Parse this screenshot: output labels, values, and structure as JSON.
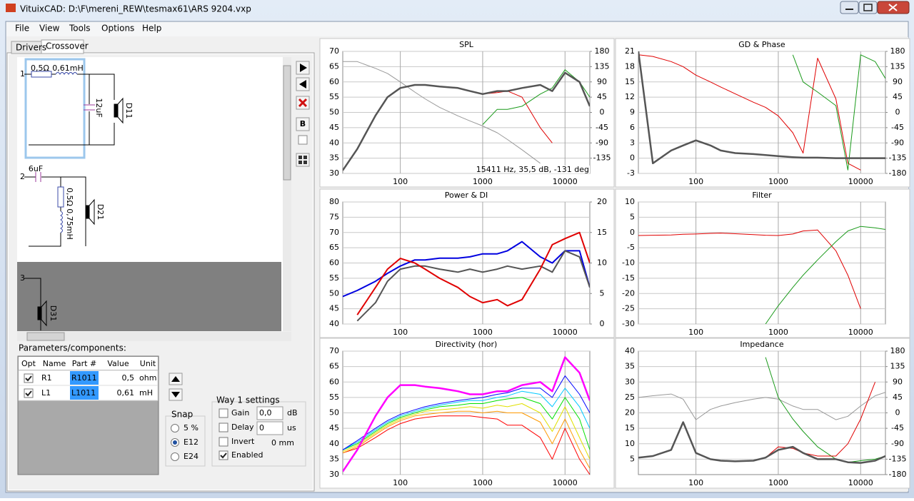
{
  "window": {
    "title": "VituixCAD: D:\\F\\mereni_REW\\tesmax61\\ARS 9204.vxp"
  },
  "menu": [
    "File",
    "View",
    "Tools",
    "Options",
    "Help"
  ],
  "tabs": [
    "Drivers",
    "Crossover"
  ],
  "schematic": {
    "way1": {
      "number": "1",
      "r": "0,5Ω",
      "l": "0,61mH",
      "c": "12uF",
      "driver": "D11"
    },
    "way2": {
      "number": "2",
      "c": "6uF",
      "r": "0,5Ω",
      "l": "0,75mH",
      "driver": "D21"
    },
    "way3": {
      "number": "3",
      "driver": "D31"
    }
  },
  "parameters": {
    "title": "Parameters/components:",
    "columns": [
      "Opt",
      "Name",
      "Part #",
      "Value",
      "Unit"
    ],
    "rows": [
      {
        "opt": true,
        "cells": [
          "R1",
          "R1011",
          "0,5",
          "ohm"
        ]
      },
      {
        "opt": true,
        "cells": [
          "L1",
          "L1011",
          "0,61",
          "mH"
        ]
      }
    ]
  },
  "snap": {
    "title": "Snap",
    "options": [
      "5 %",
      "E12",
      "E24"
    ],
    "selected_index": 1
  },
  "way_settings": {
    "title": "Way 1 settings",
    "gain": {
      "label": "Gain",
      "value": "0,0",
      "unit": "dB"
    },
    "delay": {
      "label": "Delay",
      "value": "0",
      "unit": "us"
    },
    "invert": {
      "label": "Invert",
      "checked": false,
      "distance": "0 mm"
    },
    "enabled": {
      "label": "Enabled",
      "checked": true
    }
  },
  "charts": [
    {
      "type": "line",
      "title": "SPL",
      "xscale": "log",
      "xlim": [
        20,
        20000
      ],
      "xticks": [
        100,
        1000,
        10000
      ],
      "ylim": [
        30,
        70
      ],
      "yticks": [
        70,
        65,
        60,
        55,
        50,
        45,
        40,
        35,
        30
      ],
      "y2lim": [
        -180,
        180
      ],
      "y2ticks": [
        180,
        135,
        90,
        45,
        0,
        -45,
        -90,
        -135
      ],
      "grid": true,
      "annotation": "15411 Hz, 35,5 dB, -131 deg",
      "x": [
        20,
        30,
        50,
        70,
        100,
        150,
        200,
        300,
        500,
        700,
        1000,
        1500,
        2000,
        3000,
        5000,
        7000,
        10000,
        15000,
        20000
      ],
      "series": [
        {
          "color": "#999999",
          "width": 1,
          "axis": "y2",
          "values": [
            150,
            150,
            130,
            115,
            90,
            60,
            40,
            15,
            -10,
            -25,
            -40,
            -60,
            -80,
            -110,
            -150,
            null,
            null,
            null,
            null
          ]
        },
        {
          "color": "#e00000",
          "width": 1,
          "values": [
            31,
            38,
            49,
            55,
            58,
            59,
            59,
            58.5,
            58,
            57,
            56,
            56.5,
            57,
            55,
            45,
            40,
            null,
            null,
            null
          ]
        },
        {
          "color": "#1a9a1a",
          "width": 1,
          "values": [
            null,
            null,
            null,
            null,
            null,
            null,
            null,
            null,
            null,
            null,
            46,
            51,
            51,
            52,
            56,
            58,
            64,
            60,
            55
          ]
        },
        {
          "color": "#555555",
          "width": 2.5,
          "values": [
            31,
            38,
            49,
            55,
            58,
            59,
            59,
            58.5,
            58,
            57,
            56,
            57,
            57,
            58,
            59,
            57,
            63,
            60,
            52
          ]
        }
      ]
    },
    {
      "type": "line",
      "title": "GD & Phase",
      "xscale": "log",
      "xlim": [
        20,
        20000
      ],
      "xticks": [
        100,
        1000,
        10000
      ],
      "ylim": [
        -3,
        21
      ],
      "yticks": [
        21,
        18,
        15,
        12,
        9,
        6,
        3,
        0,
        -3
      ],
      "y2lim": [
        -180,
        180
      ],
      "y2ticks": [
        180,
        135,
        90,
        45,
        0,
        -45,
        -90,
        -135,
        -180
      ],
      "grid": true,
      "x": [
        20,
        30,
        50,
        70,
        100,
        150,
        200,
        300,
        500,
        700,
        1000,
        1500,
        2000,
        3000,
        5000,
        7000,
        10000,
        15000,
        20000
      ],
      "series": [
        {
          "color": "#e00000",
          "width": 1,
          "axis": "y2",
          "values": [
            170,
            165,
            150,
            135,
            110,
            90,
            75,
            55,
            30,
            15,
            -10,
            -60,
            -120,
            160,
            40,
            -150,
            -170,
            null,
            null
          ]
        },
        {
          "color": "#1a9a1a",
          "width": 1,
          "axis": "y2",
          "values": [
            null,
            null,
            null,
            null,
            null,
            null,
            null,
            null,
            null,
            null,
            null,
            170,
            90,
            60,
            20,
            -170,
            170,
            150,
            100
          ]
        },
        {
          "color": "#555555",
          "width": 2.5,
          "values": [
            21,
            -1,
            1.5,
            2.5,
            3.5,
            2.5,
            1.5,
            1,
            0.8,
            0.6,
            0.4,
            0.2,
            0.1,
            0.1,
            0,
            0,
            0,
            0,
            0
          ]
        }
      ]
    },
    {
      "type": "line",
      "title": "Power & DI",
      "xscale": "log",
      "xlim": [
        20,
        20000
      ],
      "xticks": [
        100,
        1000,
        10000
      ],
      "ylim": [
        40,
        80
      ],
      "yticks": [
        80,
        75,
        70,
        65,
        60,
        55,
        50,
        45,
        40
      ],
      "y2lim": [
        0,
        20
      ],
      "y2ticks": [
        20,
        15,
        10,
        5,
        0
      ],
      "grid": true,
      "x": [
        20,
        30,
        50,
        70,
        100,
        150,
        200,
        300,
        500,
        700,
        1000,
        1500,
        2000,
        3000,
        5000,
        7000,
        10000,
        15000,
        20000
      ],
      "series": [
        {
          "color": "#0000e0",
          "width": 2,
          "axis": "y2",
          "values": [
            4.5,
            5.5,
            7,
            8.3,
            9.5,
            10.5,
            10.5,
            10.8,
            10.8,
            11,
            11.5,
            11.5,
            12,
            13.5,
            11,
            10,
            12,
            12,
            6
          ]
        },
        {
          "color": "#555555",
          "width": 2,
          "values": [
            null,
            41,
            47,
            54,
            58,
            59,
            59,
            58,
            57,
            58,
            57,
            58,
            59,
            58,
            59,
            57,
            64,
            62,
            52
          ]
        },
        {
          "color": "#e00000",
          "width": 2,
          "values": [
            null,
            43,
            52,
            58,
            61.5,
            60,
            58,
            55,
            52,
            49,
            47,
            48,
            46,
            48,
            58,
            66,
            68,
            70,
            60
          ]
        }
      ]
    },
    {
      "type": "line",
      "title": "Filter",
      "xscale": "log",
      "xlim": [
        20,
        20000
      ],
      "xticks": [
        100,
        1000,
        10000
      ],
      "ylim": [
        -30,
        10
      ],
      "yticks": [
        10,
        5,
        0,
        -5,
        -10,
        -15,
        -20,
        -25,
        -30
      ],
      "grid": true,
      "x": [
        20,
        30,
        50,
        70,
        100,
        150,
        200,
        300,
        500,
        700,
        1000,
        1500,
        2000,
        3000,
        5000,
        7000,
        10000,
        15000,
        20000
      ],
      "series": [
        {
          "color": "#e00000",
          "width": 1,
          "values": [
            -1,
            -0.9,
            -0.8,
            -0.6,
            -0.5,
            -0.3,
            -0.2,
            -0.4,
            -0.7,
            -0.9,
            -1,
            -0.5,
            0.5,
            0.8,
            -6,
            -14,
            -25,
            null,
            null
          ]
        },
        {
          "color": "#1a9a1a",
          "width": 1,
          "values": [
            null,
            null,
            null,
            null,
            null,
            null,
            null,
            null,
            null,
            -30,
            -24,
            -18,
            -14,
            -9,
            -3,
            0.5,
            2,
            1.5,
            1
          ]
        }
      ]
    },
    {
      "type": "line",
      "title": "Directivity (hor)",
      "xscale": "log",
      "xlim": [
        20,
        20000
      ],
      "xticks": [
        100,
        1000,
        10000
      ],
      "ylim": [
        30,
        70
      ],
      "yticks": [
        70,
        65,
        60,
        55,
        50,
        45,
        40,
        35,
        30
      ],
      "grid": true,
      "x": [
        20,
        30,
        50,
        70,
        100,
        150,
        200,
        300,
        500,
        700,
        1000,
        1500,
        2000,
        3000,
        5000,
        7000,
        10000,
        15000,
        20000
      ],
      "series": [
        {
          "color": "#ff0000",
          "width": 1,
          "values": [
            37,
            38.5,
            42,
            44.5,
            46.5,
            48,
            48.5,
            49,
            49,
            49,
            48.5,
            48,
            46,
            46,
            42,
            35,
            45,
            35,
            30
          ]
        },
        {
          "color": "#ff9900",
          "width": 1,
          "values": [
            37,
            39,
            43,
            45.5,
            47.5,
            49,
            49.5,
            50,
            50.5,
            50.5,
            50,
            50.5,
            50,
            50,
            47,
            40,
            48,
            38,
            32
          ]
        },
        {
          "color": "#e0e000",
          "width": 1,
          "values": [
            37.5,
            39.5,
            43.5,
            46,
            48,
            49.5,
            50.5,
            51,
            51.5,
            52,
            51.5,
            52.5,
            52,
            53,
            50,
            44,
            52,
            42,
            35
          ]
        },
        {
          "color": "#00e000",
          "width": 1,
          "values": [
            38,
            40,
            44,
            46.5,
            48.5,
            50,
            51,
            52,
            52.5,
            53,
            53,
            54,
            54.5,
            55,
            53,
            48,
            55,
            48,
            38
          ]
        },
        {
          "color": "#00c8ff",
          "width": 1,
          "values": [
            38,
            40.5,
            44.5,
            47,
            49,
            50.5,
            51.5,
            52.5,
            53.5,
            54,
            54,
            55,
            55.5,
            57,
            56,
            52,
            58,
            52,
            45
          ]
        },
        {
          "color": "#0000ff",
          "width": 1,
          "values": [
            38,
            41,
            45,
            47.5,
            49.5,
            51,
            52,
            53,
            54,
            54.5,
            55,
            56,
            56.5,
            58,
            58,
            55,
            62,
            56,
            50
          ]
        },
        {
          "color": "#ff00ff",
          "width": 2.5,
          "values": [
            31,
            38,
            49,
            55,
            59,
            59,
            58.5,
            58,
            57,
            56,
            56,
            57,
            57,
            59,
            60,
            57,
            68,
            63,
            54
          ]
        }
      ]
    },
    {
      "type": "line",
      "title": "Impedance",
      "xscale": "log",
      "xlim": [
        20,
        20000
      ],
      "xticks": [
        100,
        1000,
        10000
      ],
      "ylim": [
        0,
        40
      ],
      "yticks": [
        40,
        35,
        30,
        25,
        20,
        15,
        10,
        5
      ],
      "y2lim": [
        -180,
        180
      ],
      "y2ticks": [
        180,
        135,
        90,
        45,
        0,
        -45,
        -90,
        -135,
        -180
      ],
      "grid": true,
      "x": [
        20,
        30,
        50,
        70,
        100,
        150,
        200,
        300,
        500,
        700,
        1000,
        1500,
        2000,
        3000,
        5000,
        7000,
        10000,
        15000,
        20000
      ],
      "series": [
        {
          "color": "#999999",
          "width": 1,
          "axis": "y2",
          "values": [
            45,
            50,
            55,
            40,
            -20,
            10,
            20,
            30,
            40,
            45,
            40,
            20,
            10,
            10,
            -20,
            -10,
            20,
            50,
            60
          ]
        },
        {
          "color": "#1a9a1a",
          "width": 1,
          "values": [
            null,
            null,
            null,
            null,
            null,
            null,
            null,
            null,
            null,
            38,
            25,
            18,
            14,
            9,
            5,
            4,
            4.5,
            5,
            6
          ]
        },
        {
          "color": "#e00000",
          "width": 1,
          "values": [
            5.5,
            6,
            8,
            17,
            7,
            5,
            4.5,
            4.3,
            4.5,
            5.5,
            9,
            8.5,
            7,
            6,
            6,
            10,
            18,
            30,
            null
          ]
        },
        {
          "color": "#555555",
          "width": 2.5,
          "values": [
            5.5,
            6,
            8,
            17,
            7,
            5,
            4.5,
            4.3,
            4.5,
            5.5,
            8,
            9,
            7,
            5,
            5,
            4,
            3.8,
            4.5,
            6
          ]
        }
      ]
    }
  ]
}
